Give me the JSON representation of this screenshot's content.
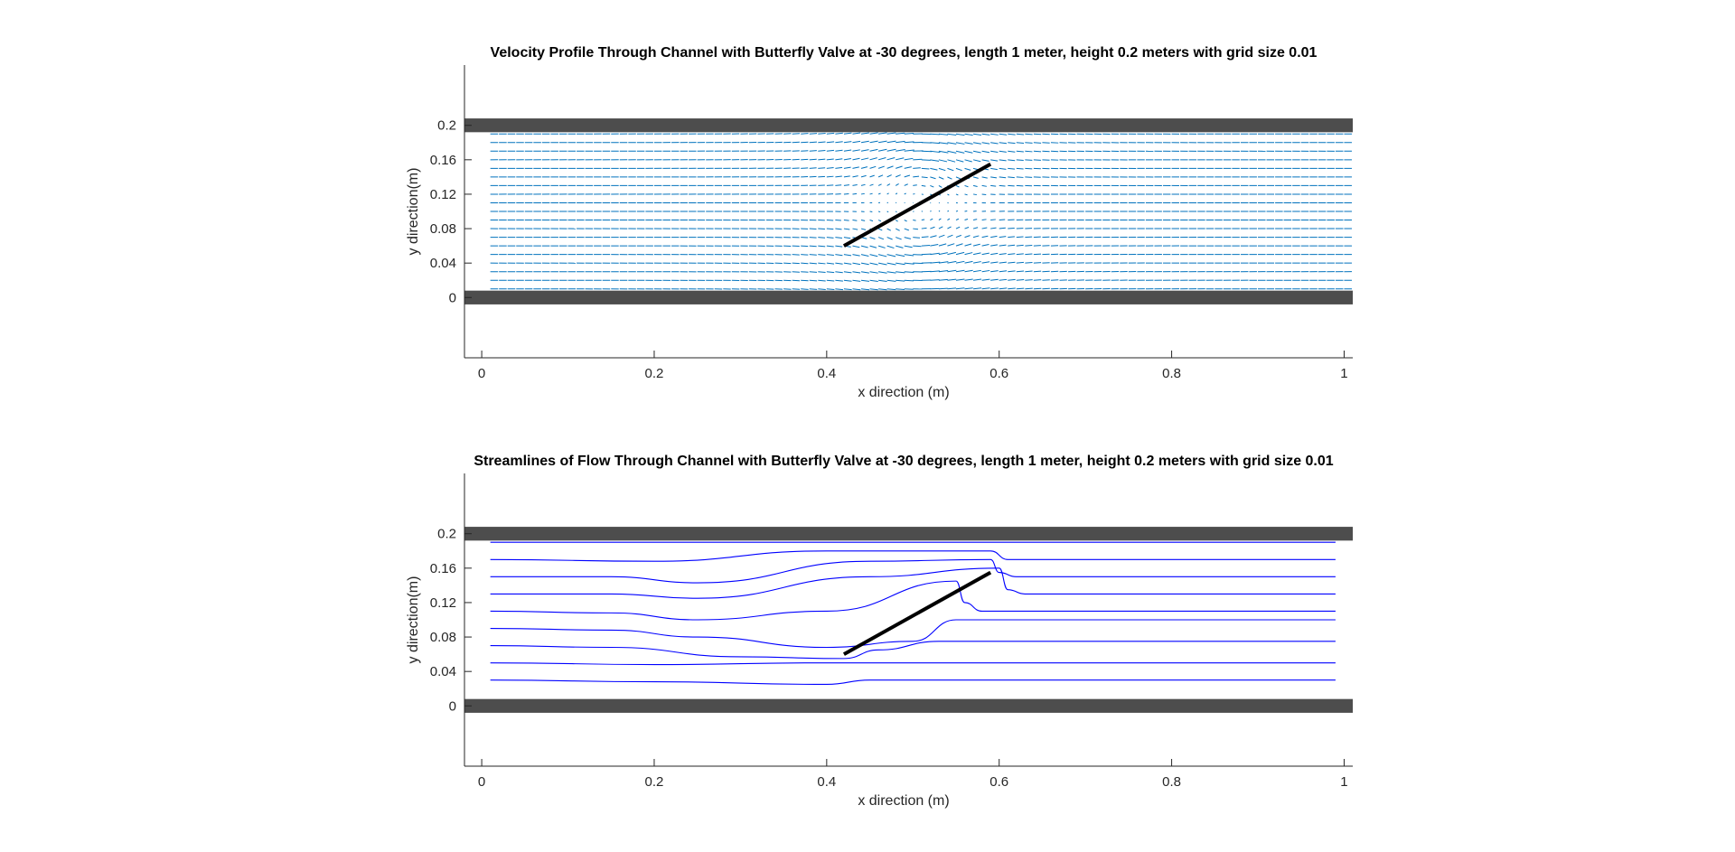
{
  "colors": {
    "wall": "#4d4d4d",
    "quiver": "#0072bd",
    "streamline": "#0000ff",
    "valve": "#000000",
    "axis": "#262626"
  },
  "chart_data": [
    {
      "type": "quiver",
      "title": "Velocity Profile Through Channel with Butterfly Valve at -30 degrees, length 1 meter, height 0.2 meters with grid size 0.01",
      "xlabel": "x direction (m)",
      "ylabel": "y direction(m)",
      "xlim": [
        -0.02,
        1.01
      ],
      "ylim": [
        -0.07,
        0.27
      ],
      "x_ticks": [
        0,
        0.2,
        0.4,
        0.6,
        0.8,
        1
      ],
      "x_tick_labels": [
        "0",
        "0.2",
        "0.4",
        "0.6",
        "0.8",
        "1"
      ],
      "y_ticks": [
        0,
        0.04,
        0.08,
        0.12,
        0.16,
        0.2
      ],
      "y_tick_labels": [
        "0",
        "0.04",
        "0.08",
        "0.12",
        "0.16",
        "0.2"
      ],
      "walls": [
        {
          "x": [
            -0.02,
            1.01
          ],
          "y": [
            -0.008,
            0.008
          ]
        },
        {
          "x": [
            -0.02,
            1.01
          ],
          "y": [
            0.192,
            0.208
          ]
        }
      ],
      "valve": {
        "x1": 0.42,
        "y1": 0.06,
        "x2": 0.59,
        "y2": 0.155
      },
      "grid_spacing": 0.01,
      "box": false
    },
    {
      "type": "streamline",
      "title": "Streamlines of Flow Through Channel with Butterfly Valve at -30 degrees, length 1 meter, height 0.2 meters with grid size 0.01",
      "xlabel": "x direction (m)",
      "ylabel": "y direction(m)",
      "xlim": [
        -0.02,
        1.01
      ],
      "ylim": [
        -0.07,
        0.27
      ],
      "x_ticks": [
        0,
        0.2,
        0.4,
        0.6,
        0.8,
        1
      ],
      "x_tick_labels": [
        "0",
        "0.2",
        "0.4",
        "0.6",
        "0.8",
        "1"
      ],
      "y_ticks": [
        0,
        0.04,
        0.08,
        0.12,
        0.16,
        0.2
      ],
      "y_tick_labels": [
        "0",
        "0.04",
        "0.08",
        "0.12",
        "0.16",
        "0.2"
      ],
      "walls": [
        {
          "x": [
            -0.02,
            1.01
          ],
          "y": [
            -0.008,
            0.008
          ]
        },
        {
          "x": [
            -0.02,
            1.01
          ],
          "y": [
            0.192,
            0.208
          ]
        }
      ],
      "valve": {
        "x1": 0.42,
        "y1": 0.06,
        "x2": 0.59,
        "y2": 0.155
      },
      "streamlines": [
        {
          "x": [
            0.01,
            0.2,
            0.4,
            0.6,
            0.99
          ],
          "y": [
            0.19,
            0.19,
            0.19,
            0.19,
            0.19
          ]
        },
        {
          "x": [
            0.01,
            0.2,
            0.4,
            0.59,
            0.61,
            0.63,
            0.99
          ],
          "y": [
            0.17,
            0.168,
            0.18,
            0.18,
            0.17,
            0.17,
            0.17
          ]
        },
        {
          "x": [
            0.01,
            0.15,
            0.25,
            0.45,
            0.59,
            0.6,
            0.62,
            0.99
          ],
          "y": [
            0.15,
            0.15,
            0.143,
            0.168,
            0.17,
            0.155,
            0.15,
            0.15
          ]
        },
        {
          "x": [
            0.01,
            0.15,
            0.25,
            0.45,
            0.6,
            0.61,
            0.63,
            0.99
          ],
          "y": [
            0.13,
            0.13,
            0.125,
            0.15,
            0.16,
            0.135,
            0.13,
            0.13
          ]
        },
        {
          "x": [
            0.01,
            0.15,
            0.25,
            0.4,
            0.55,
            0.56,
            0.58,
            0.99
          ],
          "y": [
            0.11,
            0.108,
            0.1,
            0.11,
            0.145,
            0.12,
            0.11,
            0.11
          ]
        },
        {
          "x": [
            0.01,
            0.15,
            0.25,
            0.4,
            0.5,
            0.55,
            0.99
          ],
          "y": [
            0.09,
            0.088,
            0.08,
            0.068,
            0.075,
            0.1,
            0.1
          ]
        },
        {
          "x": [
            0.01,
            0.15,
            0.3,
            0.42,
            0.46,
            0.53,
            0.99
          ],
          "y": [
            0.07,
            0.068,
            0.057,
            0.055,
            0.065,
            0.075,
            0.075
          ]
        },
        {
          "x": [
            0.01,
            0.2,
            0.4,
            0.44,
            0.99
          ],
          "y": [
            0.05,
            0.048,
            0.05,
            0.05,
            0.05
          ]
        },
        {
          "x": [
            0.01,
            0.2,
            0.4,
            0.45,
            0.99
          ],
          "y": [
            0.03,
            0.028,
            0.025,
            0.03,
            0.03
          ]
        }
      ],
      "box": false
    }
  ]
}
